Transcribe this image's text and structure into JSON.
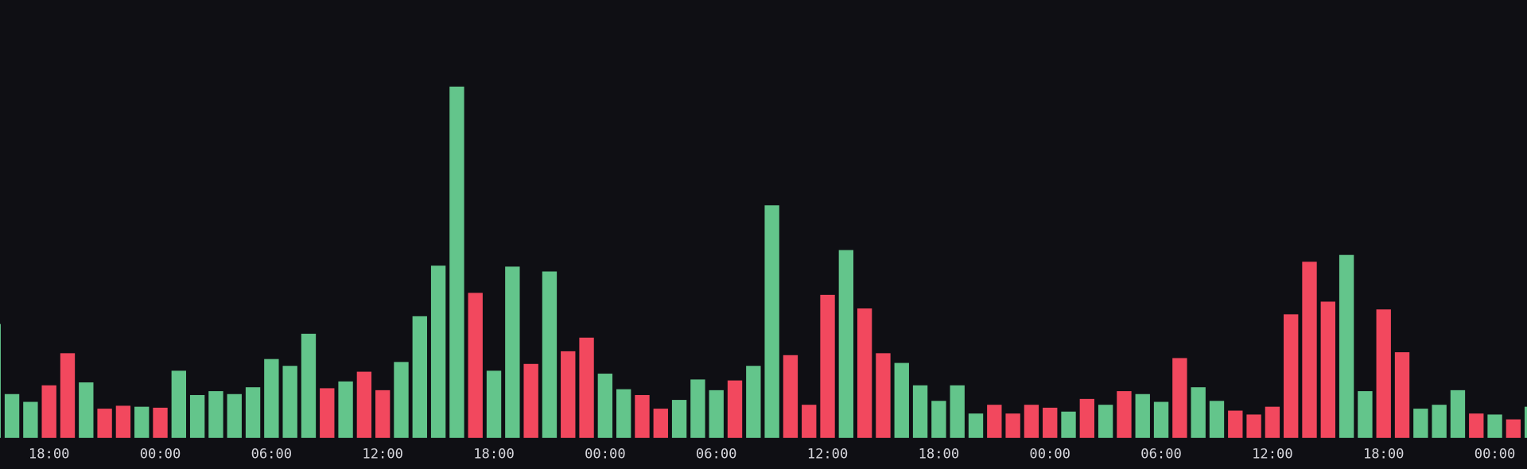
{
  "chart_data": {
    "type": "bar",
    "categories": [
      null,
      null,
      null,
      "18:00",
      null,
      null,
      null,
      null,
      null,
      "00:00",
      null,
      null,
      null,
      null,
      null,
      "06:00",
      null,
      null,
      null,
      null,
      null,
      "12:00",
      null,
      null,
      null,
      null,
      null,
      "18:00",
      null,
      null,
      null,
      null,
      null,
      "00:00",
      null,
      null,
      null,
      null,
      null,
      "06:00",
      null,
      null,
      null,
      null,
      null,
      "12:00",
      null,
      null,
      null,
      null,
      null,
      "18:00",
      null,
      null,
      null,
      null,
      null,
      "00:00",
      null,
      null,
      null,
      null,
      null,
      "06:00",
      null,
      null,
      null,
      null,
      null,
      "12:00",
      null,
      null,
      null,
      null,
      null,
      "18:00",
      null,
      null,
      null,
      null,
      null,
      "00:00",
      null,
      null
    ],
    "values": [
      117,
      45,
      37,
      54,
      87,
      57,
      30,
      33,
      32,
      31,
      69,
      44,
      48,
      45,
      52,
      81,
      74,
      107,
      51,
      58,
      68,
      49,
      78,
      125,
      177,
      361,
      149,
      69,
      176,
      76,
      171,
      89,
      103,
      66,
      50,
      44,
      30,
      39,
      60,
      49,
      59,
      74,
      239,
      85,
      34,
      147,
      193,
      133,
      87,
      77,
      54,
      38,
      54,
      25,
      34,
      25,
      34,
      31,
      27,
      40,
      34,
      48,
      45,
      37,
      82,
      52,
      38,
      28,
      24,
      32,
      127,
      181,
      140,
      188,
      48,
      132,
      88,
      30,
      34,
      49,
      25,
      24,
      19,
      32
    ],
    "colors": [
      "#63c58b",
      "#63c58b",
      "#63c58b",
      "#f2485e",
      "#f2485e",
      "#63c58b",
      "#f2485e",
      "#f2485e",
      "#63c58b",
      "#f2485e",
      "#63c58b",
      "#63c58b",
      "#63c58b",
      "#63c58b",
      "#63c58b",
      "#63c58b",
      "#63c58b",
      "#63c58b",
      "#f2485e",
      "#63c58b",
      "#f2485e",
      "#f2485e",
      "#63c58b",
      "#63c58b",
      "#63c58b",
      "#63c58b",
      "#f2485e",
      "#63c58b",
      "#63c58b",
      "#f2485e",
      "#63c58b",
      "#f2485e",
      "#f2485e",
      "#63c58b",
      "#63c58b",
      "#f2485e",
      "#f2485e",
      "#63c58b",
      "#63c58b",
      "#63c58b",
      "#f2485e",
      "#63c58b",
      "#63c58b",
      "#f2485e",
      "#f2485e",
      "#f2485e",
      "#63c58b",
      "#f2485e",
      "#f2485e",
      "#63c58b",
      "#63c58b",
      "#63c58b",
      "#63c58b",
      "#63c58b",
      "#f2485e",
      "#f2485e",
      "#f2485e",
      "#f2485e",
      "#63c58b",
      "#f2485e",
      "#63c58b",
      "#f2485e",
      "#63c58b",
      "#63c58b",
      "#f2485e",
      "#63c58b",
      "#63c58b",
      "#f2485e",
      "#f2485e",
      "#f2485e",
      "#f2485e",
      "#f2485e",
      "#f2485e",
      "#63c58b",
      "#63c58b",
      "#f2485e",
      "#f2485e",
      "#63c58b",
      "#63c58b",
      "#63c58b",
      "#f2485e",
      "#63c58b",
      "#f2485e",
      "#63c58b"
    ],
    "ylim": [
      0,
      380
    ]
  }
}
